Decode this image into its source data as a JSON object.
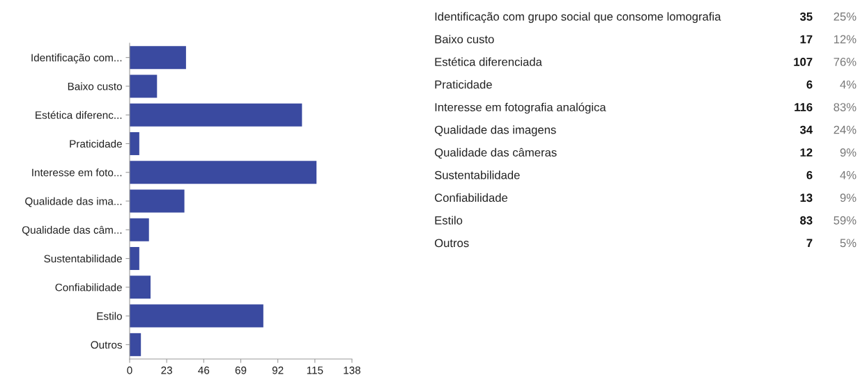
{
  "chart_data": [
    {
      "type": "bar",
      "orientation": "horizontal",
      "categories": [
        "Identificação com...",
        "Baixo custo",
        "Estética diferenc...",
        "Praticidade",
        "Interesse em foto...",
        "Qualidade das ima...",
        "Qualidade das câm...",
        "Sustentabilidade",
        "Confiabilidade",
        "Estilo",
        "Outros"
      ],
      "values": [
        35,
        17,
        107,
        6,
        116,
        34,
        12,
        6,
        13,
        83,
        7
      ],
      "color": "#3a4aa0",
      "xlim": [
        0,
        138
      ],
      "xticks": [
        0,
        23,
        46,
        69,
        92,
        115,
        138
      ],
      "grid": false,
      "legend": false
    },
    {
      "type": "other",
      "categories": [
        "Identificação com grupo social que consome lomografia",
        "Baixo custo",
        "Estética diferenciada",
        "Praticidade",
        "Interesse em fotografia analógica",
        "Qualidade das imagens",
        "Qualidade das câmeras",
        "Sustentabilidade",
        "Confiabilidade",
        "Estilo",
        "Outros"
      ],
      "series": [
        {
          "values": [
            35,
            17,
            107,
            6,
            116,
            34,
            12,
            6,
            13,
            83,
            7
          ],
          "data_labels": true
        },
        {
          "values": [
            25,
            12,
            76,
            4,
            83,
            24,
            9,
            4,
            9,
            59,
            5
          ],
          "value_labels": [
            "25%",
            "12%",
            "76%",
            "4%",
            "83%",
            "24%",
            "9%",
            "4%",
            "9%",
            "59%",
            "5%"
          ]
        }
      ]
    }
  ]
}
